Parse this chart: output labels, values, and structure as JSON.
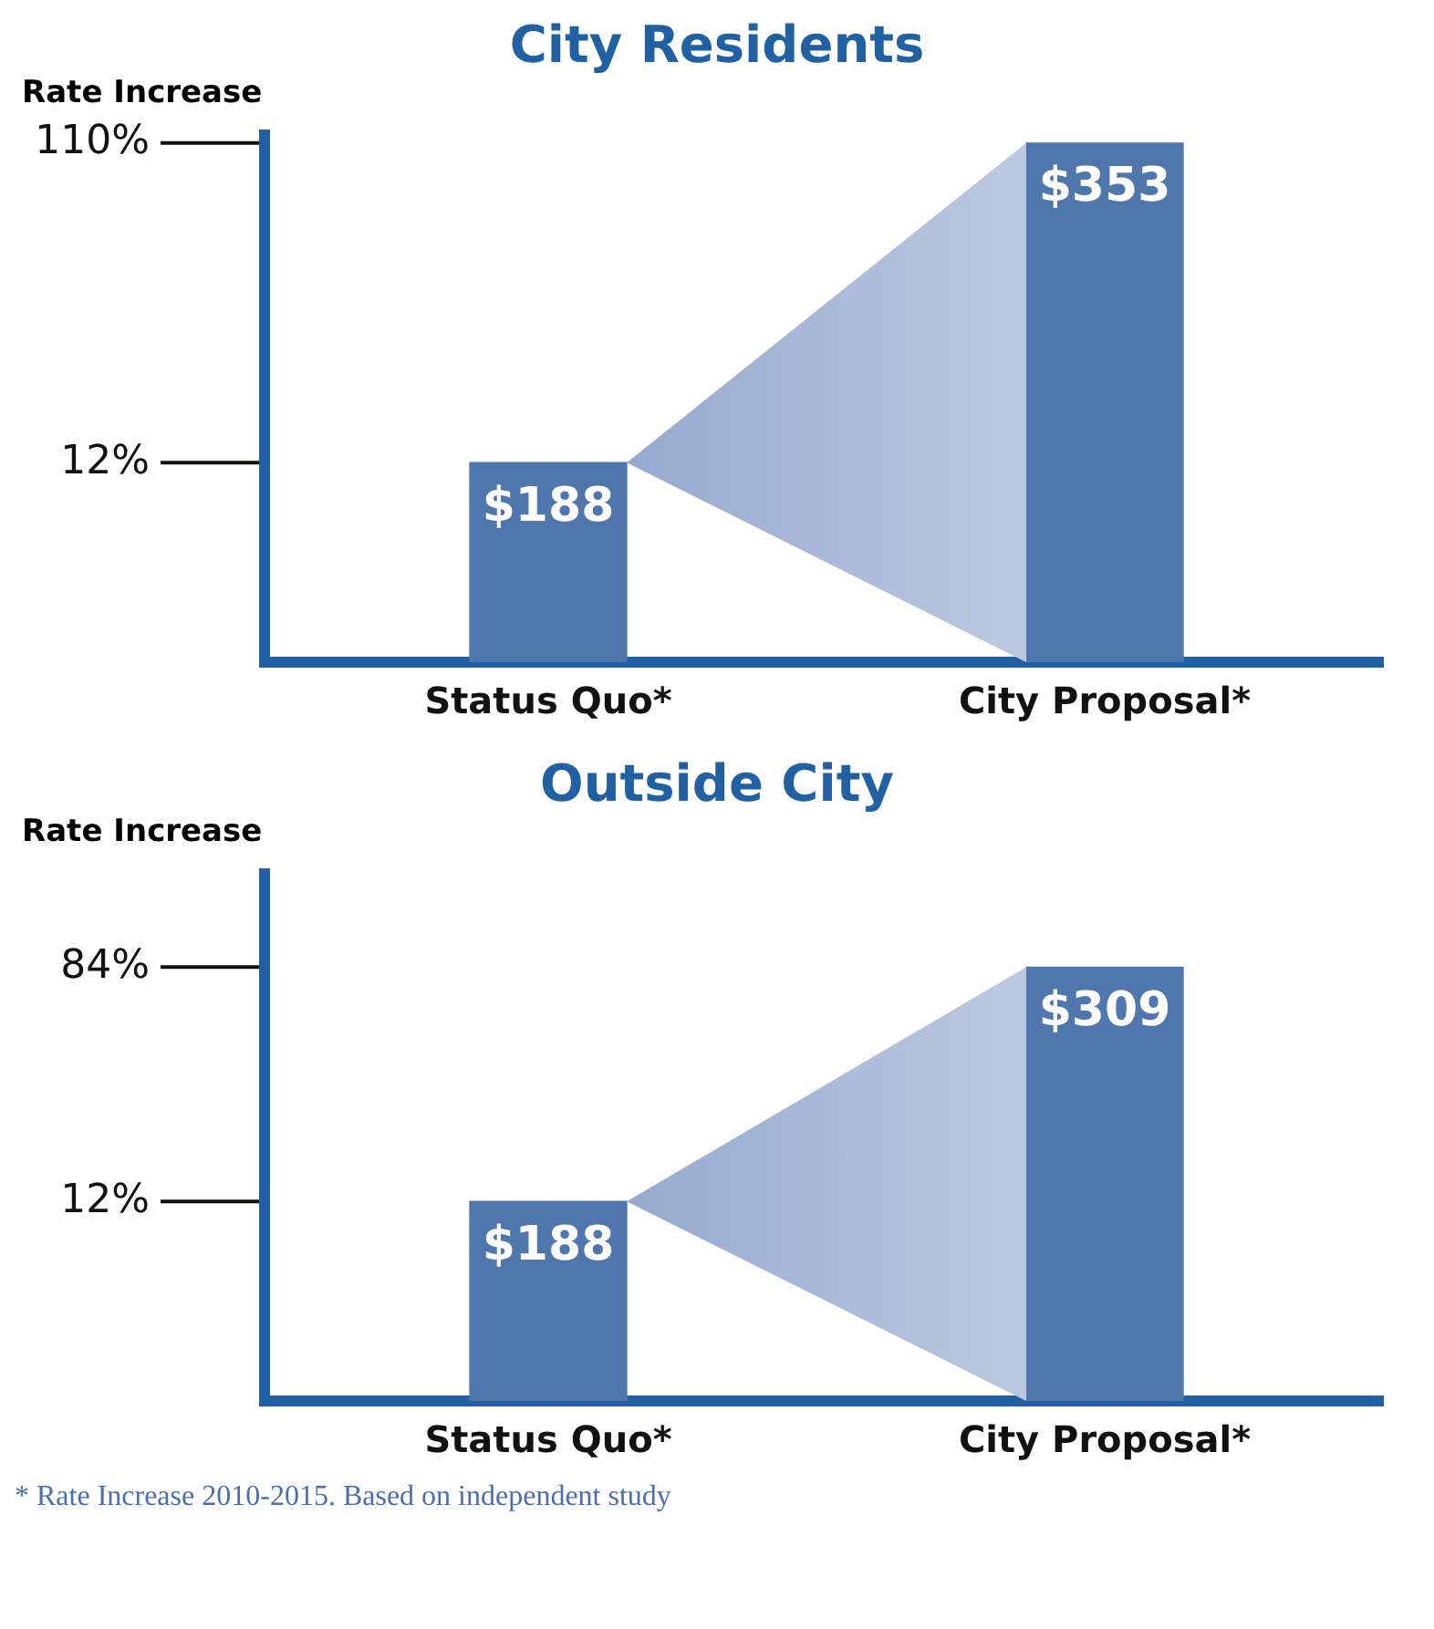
{
  "chart_data": [
    {
      "type": "bar",
      "title": "City Residents",
      "ylabel": "Rate Increase",
      "categories": [
        "Status Quo*",
        "City Proposal*"
      ],
      "values": [
        188,
        353
      ],
      "value_labels": [
        "$188",
        "$353"
      ],
      "color": "#4f76ad",
      "ylim": [
        85,
        360
      ],
      "tick_labels": "x",
      "legend": false,
      "annotations": [
        "12%",
        "110%"
      ]
    },
    {
      "type": "bar",
      "title": "Outside City",
      "ylabel": "Rate Increase",
      "categories": [
        "Status Quo*",
        "City Proposal*"
      ],
      "values": [
        188,
        309
      ],
      "value_labels": [
        "$188",
        "$309"
      ],
      "color": "#4f76ad",
      "ylim": [
        85,
        360
      ],
      "tick_labels": "x",
      "legend": false,
      "annotations": [
        "12%",
        "84%",
        "* Rate Increase 2010-2015.  Based on independent study"
      ]
    }
  ]
}
